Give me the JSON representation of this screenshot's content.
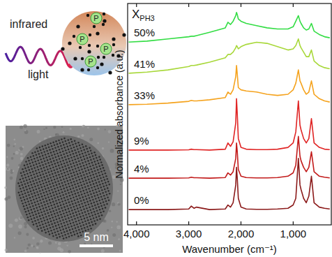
{
  "chart_data": {
    "type": "line",
    "x_label": "Wavenumber (cm⁻¹)",
    "y_label": "Normalized absorbance (a.u.)",
    "annotation": {
      "text": "X",
      "subscript": "PH3"
    },
    "x": [
      4150,
      3800,
      3400,
      3000,
      2950,
      2900,
      2850,
      2600,
      2300,
      2250,
      2200,
      2150,
      2100,
      2085,
      2070,
      2050,
      2000,
      1900,
      1700,
      1500,
      1300,
      1100,
      1000,
      950,
      900,
      870,
      850,
      800,
      750,
      700,
      650,
      600,
      500,
      400,
      300
    ],
    "series": [
      {
        "name": "0%",
        "color": "#8b1a1a",
        "values": [
          0.69,
          0.69,
          0.69,
          0.72,
          0.85,
          0.75,
          0.8,
          0.69,
          0.72,
          0.9,
          0.8,
          1.0,
          1.8,
          2.6,
          2.1,
          1.2,
          0.8,
          0.72,
          0.7,
          0.7,
          0.72,
          0.75,
          0.9,
          1.2,
          3.0,
          1.8,
          1.6,
          1.2,
          1.0,
          1.3,
          2.2,
          1.0,
          0.8,
          0.75,
          0.72
        ]
      },
      {
        "name": "4%",
        "color": "#c21a1a",
        "values": [
          2.11,
          2.11,
          2.11,
          2.12,
          2.15,
          2.13,
          2.13,
          2.11,
          2.14,
          2.35,
          2.25,
          2.4,
          3.0,
          3.7,
          3.3,
          2.5,
          2.2,
          2.14,
          2.12,
          2.12,
          2.14,
          2.2,
          2.35,
          2.7,
          4.0,
          3.1,
          2.9,
          2.6,
          2.4,
          2.6,
          3.3,
          2.4,
          2.2,
          2.15,
          2.12
        ]
      },
      {
        "name": "9%",
        "color": "#e02424",
        "values": [
          3.38,
          3.38,
          3.38,
          3.39,
          3.42,
          3.4,
          3.4,
          3.38,
          3.42,
          3.7,
          3.55,
          3.75,
          4.6,
          5.7,
          5.0,
          3.9,
          3.5,
          3.42,
          3.4,
          3.4,
          3.42,
          3.5,
          3.7,
          4.2,
          5.6,
          4.5,
          4.3,
          3.9,
          3.7,
          3.9,
          4.8,
          3.7,
          3.5,
          3.42,
          3.4
        ]
      },
      {
        "name": "33%",
        "color": "#f5a31e",
        "values": [
          5.43,
          5.45,
          5.5,
          5.58,
          5.62,
          5.6,
          5.6,
          5.65,
          5.75,
          6.0,
          5.9,
          6.1,
          6.7,
          7.2,
          6.8,
          6.2,
          6.1,
          6.05,
          6.0,
          5.9,
          5.85,
          5.9,
          6.1,
          6.4,
          7.0,
          6.5,
          6.4,
          6.1,
          5.9,
          6.0,
          6.5,
          5.9,
          5.7,
          5.6,
          5.55
        ]
      },
      {
        "name": "41%",
        "color": "#a8d83a",
        "values": [
          6.85,
          6.9,
          7.0,
          7.15,
          7.2,
          7.2,
          7.22,
          7.35,
          7.55,
          7.7,
          7.7,
          7.8,
          8.0,
          8.1,
          8.05,
          7.95,
          8.05,
          8.15,
          8.25,
          8.2,
          8.05,
          7.9,
          7.95,
          8.1,
          8.4,
          8.1,
          8.0,
          7.8,
          7.6,
          7.6,
          7.9,
          7.4,
          7.2,
          7.1,
          7.05
        ]
      },
      {
        "name": "50%",
        "color": "#33dd44",
        "values": [
          8.26,
          8.3,
          8.4,
          8.5,
          8.52,
          8.52,
          8.55,
          8.7,
          8.9,
          9.15,
          9.05,
          9.2,
          9.45,
          9.6,
          9.5,
          9.3,
          9.2,
          9.1,
          9.0,
          8.9,
          8.85,
          8.85,
          8.95,
          9.2,
          9.45,
          9.2,
          9.1,
          8.9,
          8.8,
          8.85,
          9.1,
          8.75,
          8.6,
          8.5,
          8.45
        ]
      }
    ],
    "xlim": [
      4170,
      270
    ],
    "ylim": [
      0,
      10
    ],
    "xticks": [
      {
        "value": 4000,
        "label": "4,000"
      },
      {
        "value": 3000,
        "label": "3,000"
      },
      {
        "value": 2000,
        "label": "2,000"
      },
      {
        "value": 1000,
        "label": "1,000"
      }
    ],
    "yticks": [],
    "tick_labels": "x",
    "grid": false
  },
  "schematic": {
    "light_label": [
      "infrared",
      "light"
    ],
    "atom_label": "P"
  },
  "micrograph": {
    "scale_bar": "5 nm"
  }
}
